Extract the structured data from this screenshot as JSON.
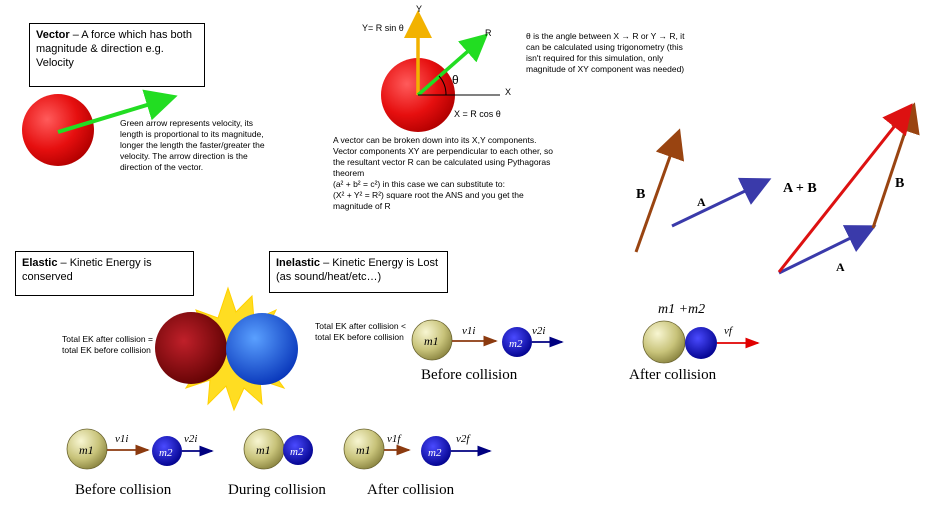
{
  "vector_box": {
    "term": "Vector",
    "text": " – A force which has both magnitude & direction e.g. Velocity"
  },
  "velocity_note": "Green arrow represents velocity, its length is proportional to its magnitude, longer the length the faster/greater the velocity. The arrow direction is the direction of the vector.",
  "components": {
    "y_axis": "Y",
    "y_eq": "Y= R sin θ",
    "r_label": "R",
    "theta": "θ",
    "x_axis": "X",
    "x_eq": "X = R cos θ"
  },
  "theta_note": "θ is the angle between X → R or Y → R, it can be calculated using trigonometry (this isn't required for this simulation, only magnitude of XY component was needed)",
  "breakdown": {
    "line1": "A vector can be broken down into its X,Y components. Vector components XY are perpendicular to each other, so the resultant vector R can be calculated using Pythagoras theorem",
    "line2": "(a² + b² = c²) in this case we can substitute to:",
    "line3": "(X² + Y² = R²) square root the ANS and you get the magnitude of R"
  },
  "vector_add": {
    "b_left": "B",
    "a_mid": "A",
    "a_plus_b": "A + B",
    "b_right": "B",
    "a_bottom": "A"
  },
  "elastic_box": {
    "term": "Elastic",
    "text": " – Kinetic Energy is conserved"
  },
  "inelastic_box": {
    "term": "Inelastic",
    "text": " – Kinetic Energy is Lost (as sound/heat/etc…)"
  },
  "elastic_note": "Total EK after collision = total EK before collision",
  "inelastic_note": "Total EK after collision < total EK before collision",
  "inelastic_diagram": {
    "m1": "m1",
    "m2": "m2",
    "v1i": "v1i",
    "v2i": "v2i",
    "before": "Before collision",
    "combined": "m1 +m2",
    "vf": "vf",
    "after": "After collision"
  },
  "elastic_diagram": {
    "m1": "m1",
    "m2": "m2",
    "v1i": "v1i",
    "v2i": "v2i",
    "v1f": "v1f",
    "v2f": "v2f",
    "before": "Before collision",
    "during": "During collision",
    "after": "After collision"
  },
  "colors": {
    "velocity": "#22dd22",
    "ball_red": "#ee1111",
    "vector_a": "#3a3aaa",
    "vector_b": "#994411",
    "resultant": "#dd1111",
    "y_component": "#f2b200"
  }
}
